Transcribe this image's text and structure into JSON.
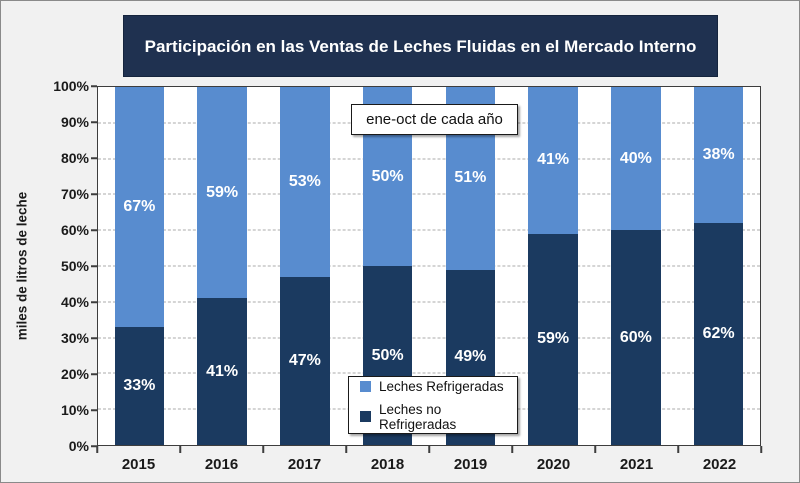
{
  "title": {
    "text": "Participación en las Ventas de Leches Fluidas en el Mercado Interno",
    "bg": "#1F3150",
    "color": "#FFFFFF"
  },
  "annotation": {
    "text": "ene-oct de cada año"
  },
  "y_axis": {
    "label": "miles de litros de leche",
    "ticks": [
      "100%",
      "90%",
      "80%",
      "70%",
      "60%",
      "50%",
      "40%",
      "30%",
      "20%",
      "10%",
      "0%"
    ]
  },
  "legend": {
    "items": [
      {
        "label": "Leches Refrigeradas",
        "color": "#588CCF"
      },
      {
        "label": "Leches no Refrigeradas",
        "color": "#1B3A60"
      }
    ]
  },
  "colors": {
    "background": "#F1F1F1",
    "frame_border": "#8A8A8A",
    "gridline": "#ABABAB",
    "plot_border": "#3D3D3D",
    "refrigeradas": "#588CCF",
    "no_refrigeradas": "#1B3A60"
  },
  "chart_data": {
    "type": "bar",
    "stacked": true,
    "title": "Participación en las Ventas de Leches Fluidas en el Mercado Interno",
    "annotation": "ene-oct de cada año",
    "ylabel": "miles de litros de leche",
    "xlabel": "",
    "categories": [
      "2015",
      "2016",
      "2017",
      "2018",
      "2019",
      "2020",
      "2021",
      "2022"
    ],
    "series": [
      {
        "name": "Leches no Refrigeradas",
        "color": "#1B3A60",
        "values": [
          33,
          41,
          47,
          50,
          49,
          59,
          60,
          62
        ],
        "labels": [
          "33%",
          "41%",
          "47%",
          "50%",
          "49%",
          "59%",
          "60%",
          "62%"
        ]
      },
      {
        "name": "Leches Refrigeradas",
        "color": "#588CCF",
        "values": [
          67,
          59,
          53,
          50,
          51,
          41,
          40,
          38
        ],
        "labels": [
          "67%",
          "59%",
          "53%",
          "50%",
          "51%",
          "41%",
          "40%",
          "38%"
        ]
      }
    ],
    "ylim": [
      0,
      100
    ],
    "y_tick_step": 10,
    "grid": true,
    "legend_position": "inside-bottom-center"
  }
}
